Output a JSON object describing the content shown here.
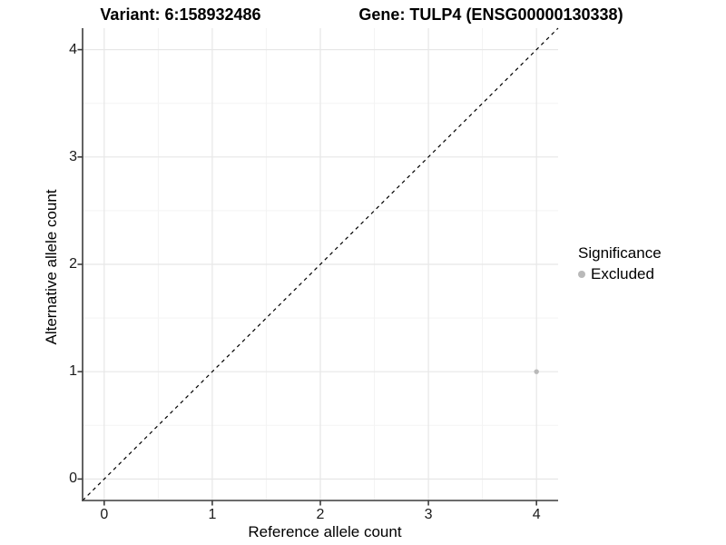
{
  "title": {
    "variant": "Variant: 6:158932486",
    "gene": "Gene: TULP4 (ENSG00000130338)"
  },
  "axes": {
    "x_label": "Reference allele count",
    "y_label": "Alternative allele count"
  },
  "legend": {
    "title": "Significance",
    "items": [
      {
        "label": "Excluded",
        "color": "#b9b9b9"
      }
    ]
  },
  "colors": {
    "background": "#ffffff",
    "grid_major": "#e7e7e7",
    "grid_minor": "#f3f3f3",
    "axis_line": "#3c3c3c",
    "tick_mark": "#3c3c3c",
    "tick_label": "#1a1a1a",
    "reference_line": "#000000",
    "point": "#b9b9b9"
  },
  "chart_data": {
    "type": "scatter",
    "title": "Variant: 6:158932486   Gene: TULP4 (ENSG00000130338)",
    "xlabel": "Reference allele count",
    "ylabel": "Alternative allele count",
    "xlim": [
      -0.2,
      4.2
    ],
    "ylim": [
      -0.2,
      4.2
    ],
    "x_ticks": [
      0,
      1,
      2,
      3,
      4
    ],
    "y_ticks": [
      0,
      1,
      2,
      3,
      4
    ],
    "grid": "major+minor",
    "legend_position": "right",
    "series": [
      {
        "name": "Excluded",
        "color": "#b9b9b9",
        "points": [
          {
            "x": 4,
            "y": 1
          }
        ]
      }
    ],
    "reference_line": {
      "style": "dashed",
      "from": [
        -0.2,
        -0.2
      ],
      "to": [
        4.2,
        4.2
      ]
    }
  }
}
